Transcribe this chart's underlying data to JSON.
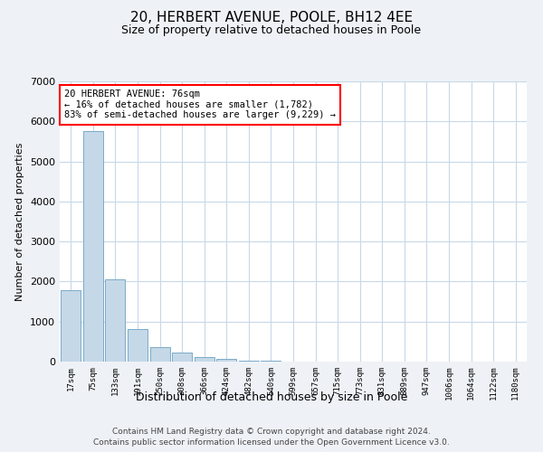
{
  "title1": "20, HERBERT AVENUE, POOLE, BH12 4EE",
  "title2": "Size of property relative to detached houses in Poole",
  "xlabel": "Distribution of detached houses by size in Poole",
  "ylabel": "Number of detached properties",
  "bar_labels": [
    "17sqm",
    "75sqm",
    "133sqm",
    "191sqm",
    "250sqm",
    "308sqm",
    "366sqm",
    "424sqm",
    "482sqm",
    "540sqm",
    "599sqm",
    "657sqm",
    "715sqm",
    "773sqm",
    "831sqm",
    "889sqm",
    "947sqm",
    "1006sqm",
    "1064sqm",
    "1122sqm",
    "1180sqm"
  ],
  "bar_values": [
    1782,
    5750,
    2050,
    820,
    365,
    220,
    110,
    60,
    30,
    15,
    8,
    3,
    1,
    0,
    0,
    0,
    0,
    0,
    0,
    0,
    0
  ],
  "bar_color": "#c5d8e8",
  "bar_edge_color": "#7aaac8",
  "box_text_line1": "20 HERBERT AVENUE: 76sqm",
  "box_text_line2": "← 16% of detached houses are smaller (1,782)",
  "box_text_line3": "83% of semi-detached houses are larger (9,229) →",
  "ylim": [
    0,
    7000
  ],
  "yticks": [
    0,
    1000,
    2000,
    3000,
    4000,
    5000,
    6000,
    7000
  ],
  "footnote1": "Contains HM Land Registry data © Crown copyright and database right 2024.",
  "footnote2": "Contains public sector information licensed under the Open Government Licence v3.0.",
  "bg_color": "#eef2f7",
  "plot_bg_color": "#ffffff",
  "grid_color": "#c8d8e8"
}
